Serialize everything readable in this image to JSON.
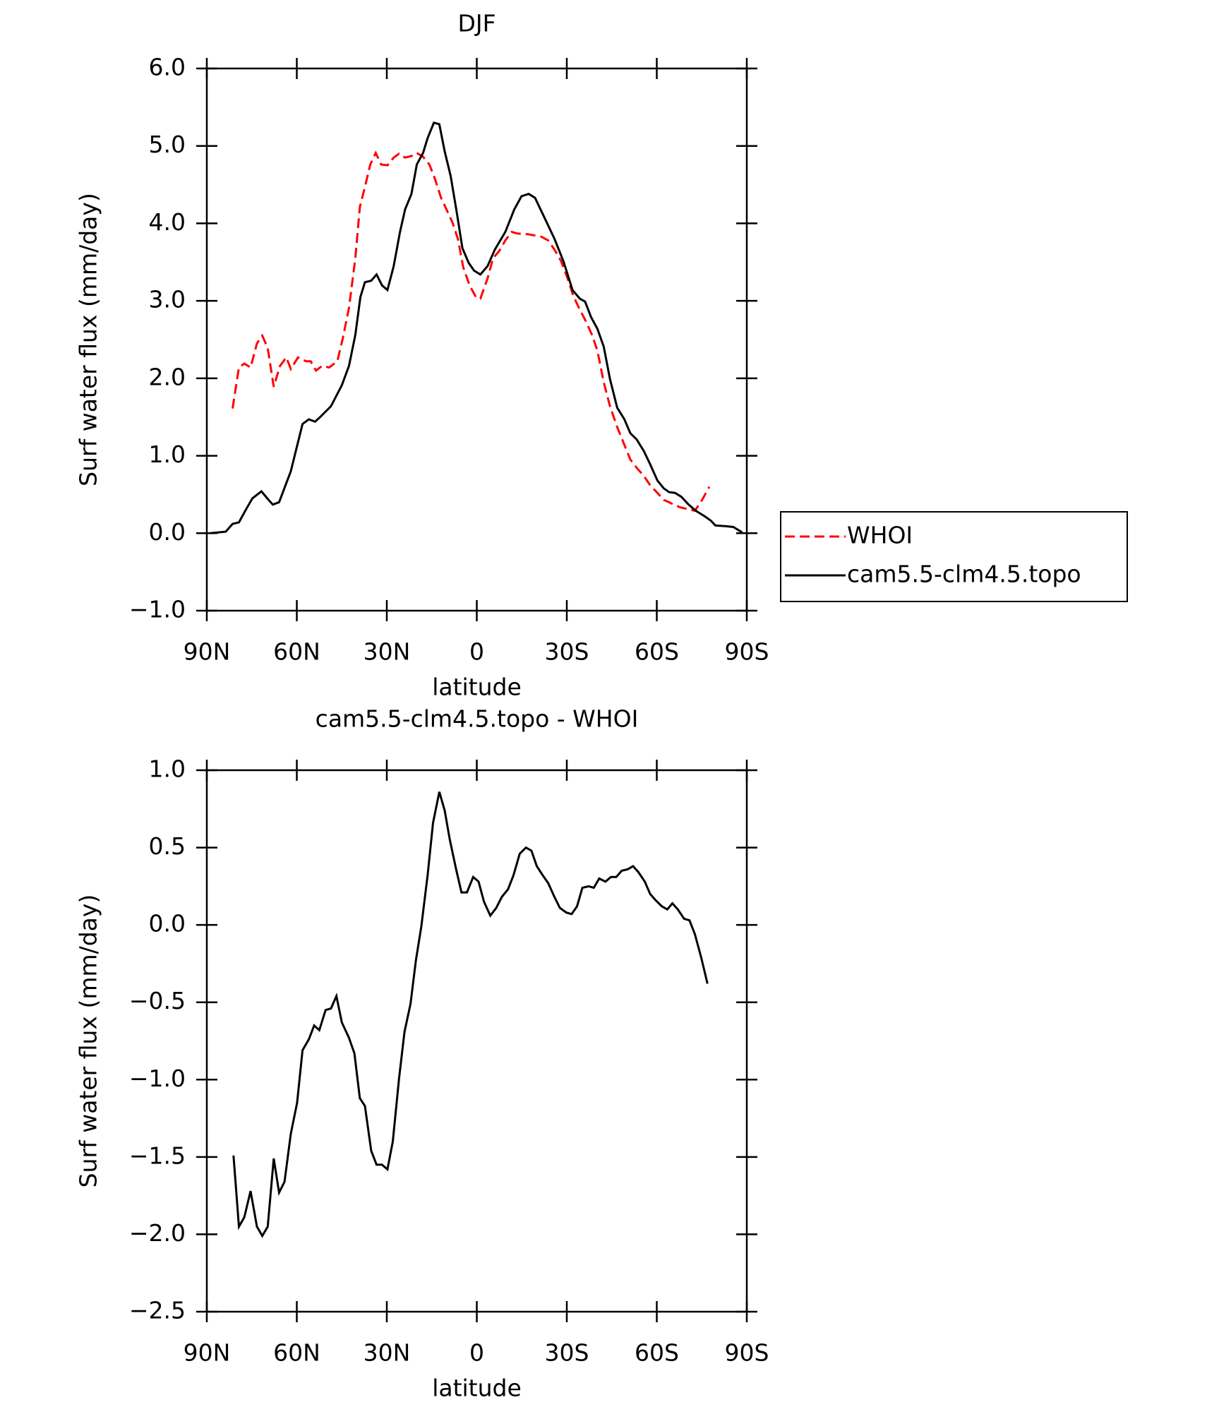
{
  "chart_data": [
    {
      "type": "line",
      "title": "DJF",
      "xlabel": "latitude",
      "ylabel": "Surf water flux (mm/day)",
      "xlim": [
        90,
        -90
      ],
      "xticks": [
        {
          "value": 90,
          "label": "90N"
        },
        {
          "value": 60,
          "label": "60N"
        },
        {
          "value": 30,
          "label": "30N"
        },
        0,
        {
          "value": -30,
          "label": "30S"
        },
        {
          "value": -60,
          "label": "60S"
        },
        {
          "value": -90,
          "label": "90S"
        }
      ],
      "ylim": [
        -1,
        6
      ],
      "yticks": [
        {
          "value": -1,
          "label": "−1.0"
        },
        {
          "value": 0,
          "label": "0.0"
        },
        {
          "value": 1,
          "label": "1.0"
        },
        {
          "value": 2,
          "label": "2.0"
        },
        {
          "value": 3,
          "label": "3.0"
        },
        {
          "value": 4,
          "label": "4.0"
        },
        {
          "value": 5,
          "label": "5.0"
        },
        {
          "value": 6,
          "label": "6.0"
        }
      ],
      "legend": "right",
      "series": [
        {
          "name": "WHOI",
          "color": "#ff0000",
          "dash": true,
          "x": [
            81.4,
            79.3,
            77.5,
            75.4,
            73.3,
            71.5,
            69.7,
            67.7,
            65.6,
            63.5,
            62,
            59.6,
            56.9,
            55.4,
            53.6,
            51.6,
            49.2,
            46.5,
            44.7,
            42.6,
            40.5,
            39,
            37.3,
            35.5,
            33.7,
            31.9,
            29.8,
            27.7,
            25.9,
            23.9,
            21.8,
            20,
            17.9,
            15.8,
            14,
            11.9,
            10.1,
            8.1,
            6.3,
            4.5,
            2.4,
            0.3,
            -1.2,
            -3.6,
            -5.4,
            -7.4,
            -9.5,
            -11.6,
            -13.4,
            -17,
            -21.4,
            -23.8,
            -25.9,
            -28,
            -30.1,
            -32.2,
            -34.3,
            -36.3,
            -38.4,
            -40.2,
            -42.3,
            -44.4,
            -46.8,
            -49.2,
            -51.2,
            -53.6,
            -55.7,
            -57.8,
            -60.2,
            -62.3,
            -64.1,
            -66.1,
            -68.2,
            -70.6,
            -72.7,
            -75.1,
            -77.5
          ],
          "values": [
            1.61,
            2.14,
            2.19,
            2.14,
            2.45,
            2.55,
            2.39,
            1.89,
            2.16,
            2.27,
            2.12,
            2.27,
            2.22,
            2.22,
            2.1,
            2.16,
            2.14,
            2.22,
            2.51,
            2.91,
            3.55,
            4.21,
            4.47,
            4.76,
            4.91,
            4.76,
            4.75,
            4.85,
            4.9,
            4.85,
            4.87,
            4.91,
            4.86,
            4.76,
            4.58,
            4.33,
            4.18,
            4.01,
            3.8,
            3.43,
            3.2,
            3.05,
            3.03,
            3.29,
            3.55,
            3.64,
            3.78,
            3.89,
            3.87,
            3.86,
            3.83,
            3.78,
            3.66,
            3.52,
            3.31,
            3.06,
            2.89,
            2.74,
            2.56,
            2.36,
            1.95,
            1.64,
            1.37,
            1.14,
            0.95,
            0.83,
            0.74,
            0.62,
            0.52,
            0.43,
            0.4,
            0.36,
            0.33,
            0.31,
            0.29,
            0.43,
            0.6
          ]
        },
        {
          "name": "cam5.5-clm4.5.topo",
          "color": "#000000",
          "dash": false,
          "x": [
            88.8,
            83.7,
            81.4,
            79.3,
            76.9,
            74.8,
            71.8,
            69.4,
            68,
            65.9,
            62,
            58.1,
            56,
            53.9,
            52.2,
            48.6,
            45,
            42.6,
            40.5,
            38.8,
            37.3,
            35.2,
            33.4,
            31.6,
            29.8,
            27.7,
            25.6,
            23.9,
            21.8,
            20,
            17.9,
            16.4,
            14.3,
            12.5,
            10.7,
            8.7,
            6.6,
            4.8,
            2.7,
            0.9,
            -1.2,
            -3.6,
            -6,
            -9.5,
            -12.5,
            -14.9,
            -17.3,
            -19.4,
            -22,
            -25.9,
            -28.9,
            -31.9,
            -34.3,
            -36.1,
            -38.1,
            -40.2,
            -42.3,
            -44.4,
            -46.8,
            -49.2,
            -51.2,
            -53.3,
            -55.7,
            -57.8,
            -60.2,
            -62.3,
            -64.1,
            -66.1,
            -68.2,
            -70.6,
            -73,
            -75.9,
            -78.1,
            -79.5,
            -83.1,
            -85.5,
            -88.5
          ],
          "values": [
            0,
            0.02,
            0.12,
            0.14,
            0.31,
            0.45,
            0.54,
            0.43,
            0.37,
            0.4,
            0.8,
            1.41,
            1.47,
            1.44,
            1.5,
            1.64,
            1.91,
            2.16,
            2.56,
            3.05,
            3.24,
            3.26,
            3.34,
            3.2,
            3.14,
            3.45,
            3.89,
            4.18,
            4.38,
            4.76,
            4.91,
            5.1,
            5.3,
            5.28,
            4.93,
            4.61,
            4.12,
            3.68,
            3.49,
            3.39,
            3.34,
            3.45,
            3.66,
            3.89,
            4.18,
            4.35,
            4.38,
            4.33,
            4.12,
            3.8,
            3.51,
            3.14,
            3.03,
            2.99,
            2.79,
            2.64,
            2.41,
            1.99,
            1.62,
            1.47,
            1.29,
            1.21,
            1.06,
            0.89,
            0.68,
            0.58,
            0.53,
            0.52,
            0.47,
            0.37,
            0.29,
            0.22,
            0.16,
            0.1,
            0.09,
            0.08,
            0.01
          ]
        }
      ]
    },
    {
      "type": "line",
      "title": "cam5.5-clm4.5.topo - WHOI",
      "xlabel": "latitude",
      "ylabel": "Surf water flux (mm/day)",
      "xlim": [
        90,
        -90
      ],
      "xticks": [
        {
          "value": 90,
          "label": "90N"
        },
        {
          "value": 60,
          "label": "60N"
        },
        {
          "value": 30,
          "label": "30N"
        },
        0,
        {
          "value": -30,
          "label": "30S"
        },
        {
          "value": -60,
          "label": "60S"
        },
        {
          "value": -90,
          "label": "90S"
        }
      ],
      "ylim": [
        -2.5,
        1
      ],
      "yticks": [
        {
          "value": -2.5,
          "label": "−2.5"
        },
        {
          "value": -2,
          "label": "−2.0"
        },
        {
          "value": -1.5,
          "label": "−1.5"
        },
        {
          "value": -1,
          "label": "−1.0"
        },
        {
          "value": -0.5,
          "label": "−0.5"
        },
        {
          "value": 0,
          "label": "0.0"
        },
        {
          "value": 0.5,
          "label": "0.5"
        },
        {
          "value": 1,
          "label": "1.0"
        }
      ],
      "series": [
        {
          "color": "#000000",
          "dash": false,
          "x": [
            81.1,
            79.3,
            77.5,
            75.4,
            73.3,
            71.5,
            69.7,
            67.7,
            65.9,
            64.1,
            62,
            59.9,
            58.1,
            56,
            54.2,
            52.5,
            50.4,
            48.6,
            46.8,
            45,
            42.6,
            40.8,
            39,
            37.3,
            35.2,
            33.4,
            31.6,
            29.8,
            28,
            25.9,
            24.1,
            22.1,
            20.3,
            18.5,
            16.4,
            14.6,
            12.5,
            10.7,
            9,
            6.9,
            5.1,
            3.3,
            1.2,
            -0.6,
            -2.4,
            -4.5,
            -6.5,
            -8.3,
            -10.4,
            -12.2,
            -14.3,
            -16.4,
            -18.2,
            -20,
            -22,
            -23.8,
            -25.9,
            -27.7,
            -29.8,
            -31.6,
            -33.4,
            -35.2,
            -37.3,
            -39,
            -40.8,
            -42.9,
            -44.7,
            -46.5,
            -48.3,
            -50.3,
            -52.1,
            -53.9,
            -56,
            -57.8,
            -59.6,
            -61.7,
            -63.5,
            -65.2,
            -67,
            -69.1,
            -70.9,
            -72.7,
            -74.8,
            -76.9
          ],
          "values": [
            -1.49,
            -1.95,
            -1.89,
            -1.72,
            -1.95,
            -2.01,
            -1.95,
            -1.51,
            -1.73,
            -1.66,
            -1.35,
            -1.15,
            -0.81,
            -0.74,
            -0.65,
            -0.68,
            -0.55,
            -0.54,
            -0.46,
            -0.63,
            -0.73,
            -0.83,
            -1.12,
            -1.17,
            -1.46,
            -1.55,
            -1.55,
            -1.58,
            -1.4,
            -0.99,
            -0.69,
            -0.51,
            -0.23,
            -0.01,
            0.32,
            0.66,
            0.86,
            0.74,
            0.55,
            0.36,
            0.21,
            0.21,
            0.31,
            0.28,
            0.15,
            0.06,
            0.11,
            0.18,
            0.23,
            0.32,
            0.46,
            0.5,
            0.48,
            0.38,
            0.32,
            0.27,
            0.18,
            0.11,
            0.08,
            0.07,
            0.12,
            0.24,
            0.25,
            0.24,
            0.3,
            0.28,
            0.31,
            0.31,
            0.35,
            0.36,
            0.38,
            0.34,
            0.28,
            0.2,
            0.16,
            0.12,
            0.1,
            0.14,
            0.1,
            0.04,
            0.03,
            -0.06,
            -0.21,
            -0.38
          ]
        }
      ]
    }
  ]
}
